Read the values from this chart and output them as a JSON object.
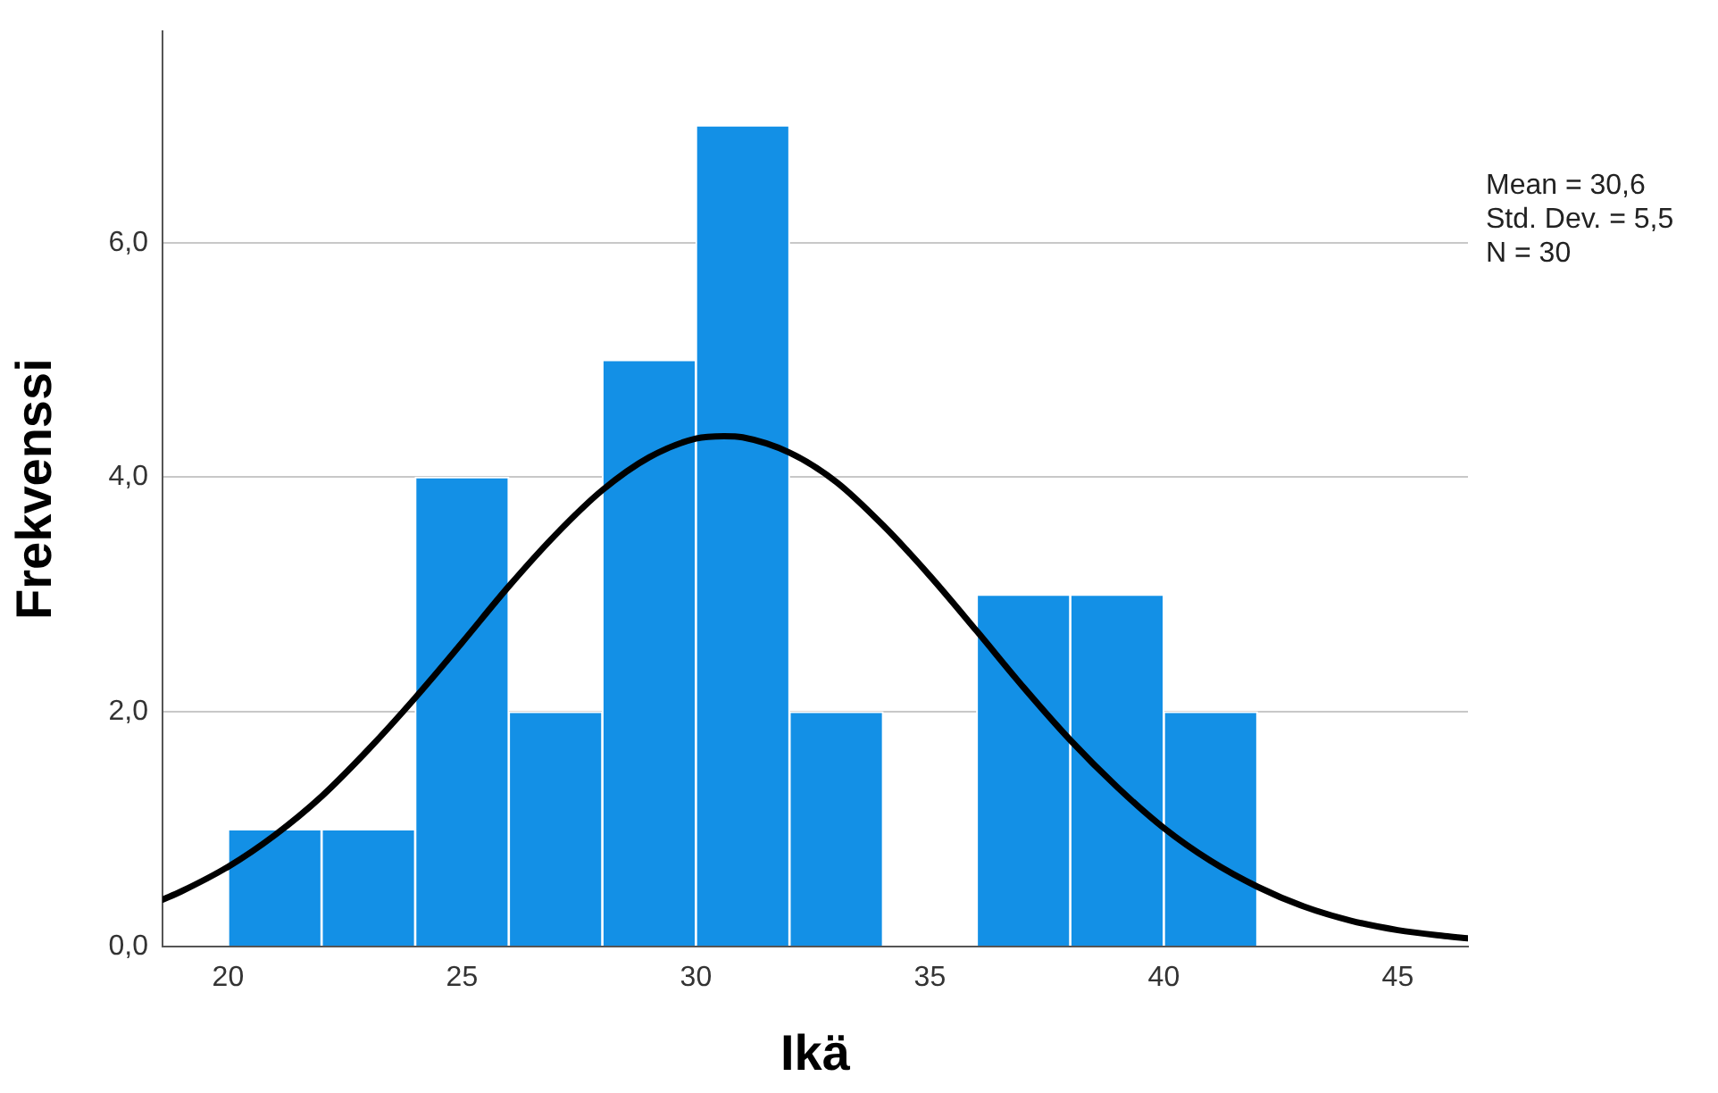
{
  "chart_data": {
    "type": "histogram",
    "xlabel": "Ikä",
    "ylabel": "Frekvenssi",
    "bins": [
      20,
      22,
      24,
      26,
      28,
      30,
      32,
      34,
      36,
      38,
      40,
      42
    ],
    "values": [
      1,
      1,
      4,
      2,
      5,
      7,
      2,
      0,
      3,
      3,
      2
    ],
    "color": "#1390e6",
    "series": [
      {
        "type": "line",
        "color": "#000000",
        "marker": "none",
        "line_style": "solid",
        "x": [
          18.6,
          19,
          20,
          21,
          22,
          23,
          24,
          25,
          26,
          27,
          28,
          29,
          30,
          30.6,
          31,
          32,
          33,
          34,
          35,
          36,
          37,
          38,
          39,
          40,
          41,
          42,
          43,
          44,
          45,
          46,
          46.5
        ],
        "values": [
          0.4,
          0.47,
          0.68,
          0.95,
          1.28,
          1.68,
          2.12,
          2.59,
          3.07,
          3.51,
          3.89,
          4.17,
          4.33,
          4.35,
          4.34,
          4.21,
          3.96,
          3.59,
          3.16,
          2.69,
          2.21,
          1.76,
          1.36,
          1.01,
          0.73,
          0.51,
          0.34,
          0.22,
          0.14,
          0.09,
          0.07
        ]
      }
    ],
    "xlim": [
      18.6,
      46.5
    ],
    "xticks": [
      20,
      25,
      30,
      35,
      40,
      45
    ],
    "ylim": [
      0,
      7.8
    ],
    "yticks": [
      {
        "value": 0,
        "label": "0,0"
      },
      {
        "value": 2,
        "label": "2,0"
      },
      {
        "value": 4,
        "label": "4,0"
      },
      {
        "value": 6,
        "label": "6,0"
      }
    ],
    "grid": "y",
    "legend": false,
    "annotations": [
      "Mean = 30,6",
      "Std. Dev. = 5,5",
      "N = 30"
    ]
  }
}
